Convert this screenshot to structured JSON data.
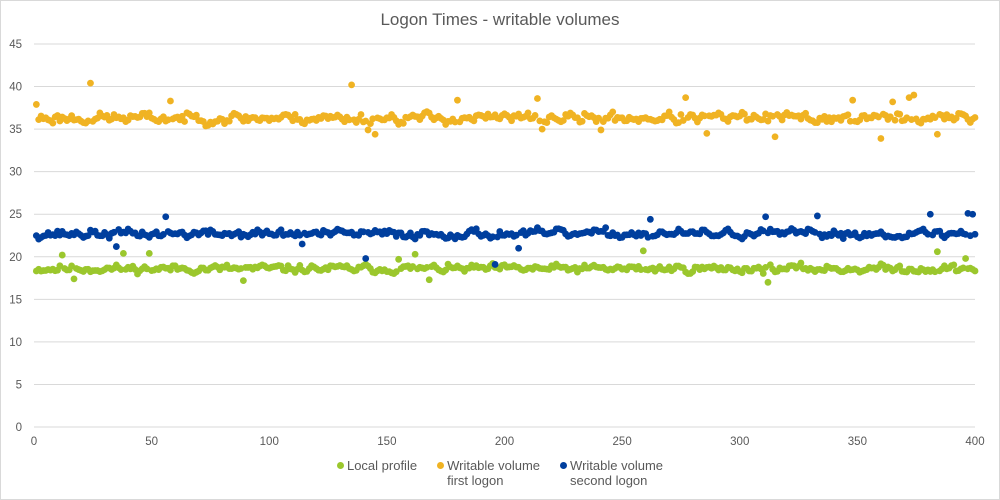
{
  "chart_data": {
    "type": "scatter",
    "title": "Logon Times - writable volumes",
    "xlabel": "",
    "ylabel": "",
    "xlim": [
      0,
      400
    ],
    "ylim": [
      0,
      45
    ],
    "x_ticks": [
      "0",
      "50",
      "100",
      "150",
      "200",
      "250",
      "300",
      "350",
      "400"
    ],
    "y_ticks": [
      "0",
      "5",
      "10",
      "15",
      "20",
      "25",
      "30",
      "35",
      "40",
      "45"
    ],
    "grid": "horizontal",
    "legend_position": "bottom",
    "series": [
      {
        "name": "Local profile",
        "legend_label": "Local profile",
        "color": "#9bc72d",
        "approx_mean": 18.6,
        "approx_range": [
          17.0,
          20.6
        ],
        "seed": 11,
        "spread": 0.55,
        "outliers": [
          [
            12,
            20.2
          ],
          [
            17,
            17.4
          ],
          [
            38,
            20.4
          ],
          [
            49,
            20.4
          ],
          [
            89,
            17.2
          ],
          [
            155,
            19.7
          ],
          [
            162,
            20.3
          ],
          [
            168,
            17.3
          ],
          [
            259,
            20.7
          ],
          [
            312,
            17.0
          ],
          [
            384,
            20.6
          ],
          [
            396,
            19.8
          ]
        ]
      },
      {
        "name": "Writable volume first logon",
        "legend_label": "Writable volume\nfirst logon",
        "color": "#f0b323",
        "approx_mean": 36.3,
        "approx_range": [
          33.9,
          40.4
        ],
        "seed": 23,
        "spread": 0.75,
        "outliers": [
          [
            24,
            40.4
          ],
          [
            1,
            37.9
          ],
          [
            58,
            38.3
          ],
          [
            135,
            40.2
          ],
          [
            142,
            34.9
          ],
          [
            145,
            34.4
          ],
          [
            180,
            38.4
          ],
          [
            214,
            38.6
          ],
          [
            216,
            35.0
          ],
          [
            241,
            34.9
          ],
          [
            277,
            38.7
          ],
          [
            286,
            34.5
          ],
          [
            315,
            34.1
          ],
          [
            348,
            38.4
          ],
          [
            360,
            33.9
          ],
          [
            365,
            38.2
          ],
          [
            372,
            38.7
          ],
          [
            374,
            39.0
          ],
          [
            384,
            34.4
          ]
        ]
      },
      {
        "name": "Writable volume second logon",
        "legend_label": "Writable volume\nsecond logon",
        "color": "#003f9e",
        "approx_mean": 22.7,
        "approx_range": [
          19.1,
          25.1
        ],
        "seed": 37,
        "spread": 0.6,
        "outliers": [
          [
            56,
            24.7
          ],
          [
            35,
            21.2
          ],
          [
            114,
            21.5
          ],
          [
            141,
            19.8
          ],
          [
            196,
            19.1
          ],
          [
            206,
            21.0
          ],
          [
            262,
            24.4
          ],
          [
            311,
            24.7
          ],
          [
            333,
            24.8
          ],
          [
            381,
            25.0
          ],
          [
            397,
            25.1
          ],
          [
            399,
            25.0
          ]
        ]
      }
    ]
  }
}
